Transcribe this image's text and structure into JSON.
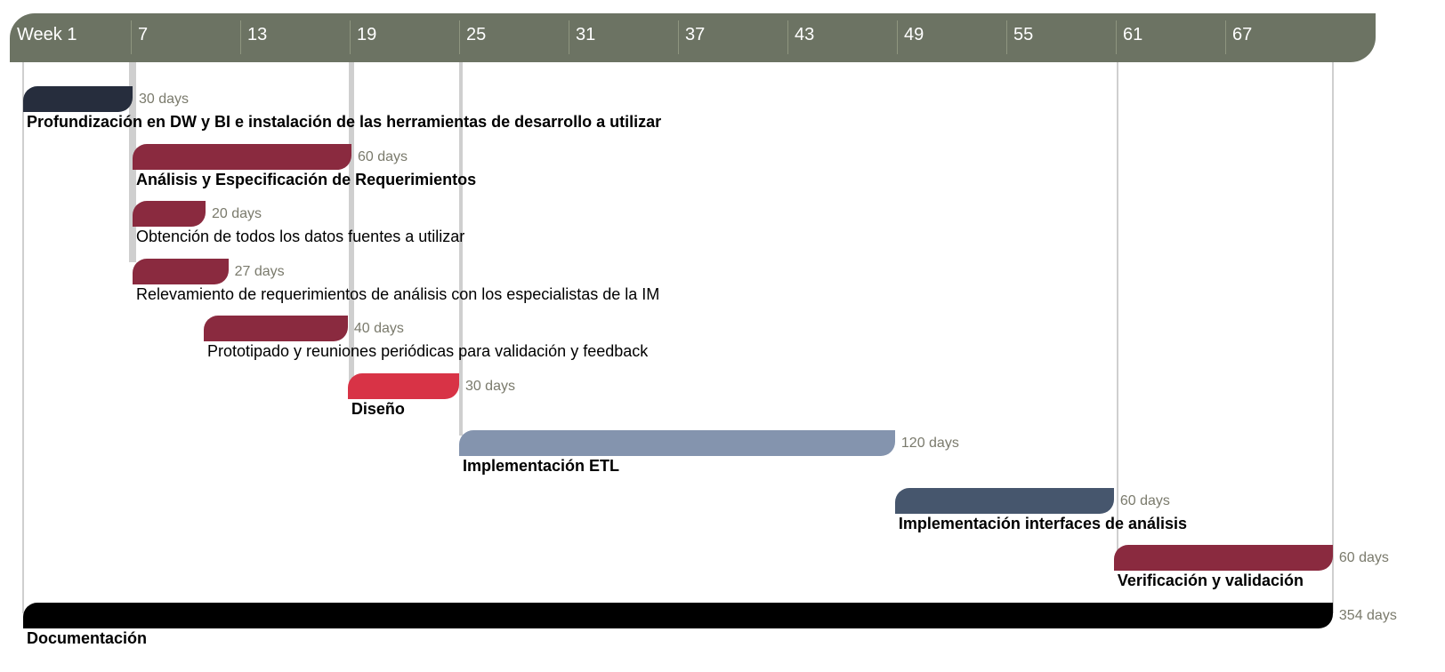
{
  "chart_data": {
    "type": "gantt",
    "x_ticks": [
      "Week 1",
      "7",
      "13",
      "19",
      "25",
      "31",
      "37",
      "43",
      "49",
      "55",
      "61",
      "67"
    ],
    "tasks": [
      {
        "name": "Profundización en DW y BI e instalación de las herramientas de desarrollo a utilizar",
        "start_week": 1,
        "end_week": 7,
        "duration": "30 days",
        "color": "#262d3d",
        "bold": true
      },
      {
        "name": "Análisis y Especificación de Requerimientos",
        "start_week": 7,
        "end_week": 19,
        "duration": "60 days",
        "color": "#8a2a3f",
        "bold": true
      },
      {
        "name": "Obtención de todos los datos fuentes a utilizar",
        "start_week": 7,
        "end_week": 11,
        "duration": "20 days",
        "color": "#8a2a3f",
        "bold": false
      },
      {
        "name": "Relevamiento de requerimientos de análisis con los especialistas de la IM",
        "start_week": 7,
        "end_week": 12.25,
        "duration": "27 days",
        "color": "#8a2a3f",
        "bold": false
      },
      {
        "name": "Prototipado y reuniones periódicas para validación y feedback",
        "start_week": 10.9,
        "end_week": 18.8,
        "duration": "40 days",
        "color": "#8a2a3f",
        "bold": false
      },
      {
        "name": "Diseño",
        "start_week": 18.8,
        "end_week": 24.9,
        "duration": "30 days",
        "color": "#d83346",
        "bold": true
      },
      {
        "name": "Implementación ETL",
        "start_week": 24.9,
        "end_week": 48.8,
        "duration": "120 days",
        "color": "#8494ae",
        "bold": true
      },
      {
        "name": "Implementación interfaces de análisis",
        "start_week": 48.8,
        "end_week": 60.8,
        "duration": "60 days",
        "color": "#46566d",
        "bold": true
      },
      {
        "name": "Verificación y validación",
        "start_week": 60.8,
        "end_week": 72.8,
        "duration": "60 days",
        "color": "#8a2a3f",
        "bold": true
      },
      {
        "name": "Documentación",
        "start_week": 1,
        "end_week": 72.8,
        "duration": "354 days",
        "color": "#000000",
        "bold": true
      }
    ],
    "dependency_weeks": [
      1,
      7,
      19,
      25,
      61,
      72.8
    ]
  }
}
